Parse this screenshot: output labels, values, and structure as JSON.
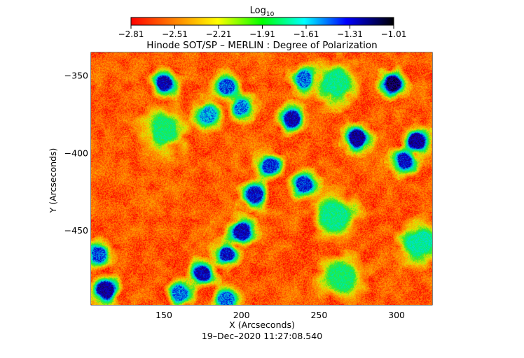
{
  "chart_data": {
    "type": "heatmap",
    "title": "Hinode SOT/SP – MERLIN : Degree of Polarization",
    "xlabel": "X (Arcseconds)",
    "ylabel": "Y (Arcseconds)",
    "timestamp": "19–Dec–2020 11:27:08.540",
    "xlim": [
      103,
      323
    ],
    "ylim": [
      -498,
      -335
    ],
    "x_ticks": [
      150,
      200,
      250,
      300
    ],
    "y_ticks": [
      -350,
      -400,
      -450
    ],
    "colorbar": {
      "title_base": "Log",
      "title_sub": "10",
      "range": [
        -2.81,
        -1.01
      ],
      "ticks": [
        "−2.81",
        "−2.51",
        "−2.21",
        "−1.91",
        "−1.61",
        "−1.31",
        "−1.01"
      ],
      "colors": [
        "#ff0000",
        "#ff8000",
        "#ffff00",
        "#00ff00",
        "#00ffff",
        "#0000ff",
        "#000000"
      ]
    },
    "background_level": -2.6,
    "features": [
      {
        "x": 150,
        "y": -355,
        "level": -1.3
      },
      {
        "x": 190,
        "y": -357,
        "level": -1.45
      },
      {
        "x": 200,
        "y": -370,
        "level": -1.5
      },
      {
        "x": 178,
        "y": -375,
        "level": -1.55
      },
      {
        "x": 240,
        "y": -352,
        "level": -1.5
      },
      {
        "x": 232,
        "y": -378,
        "level": -1.3
      },
      {
        "x": 275,
        "y": -390,
        "level": -1.25
      },
      {
        "x": 298,
        "y": -355,
        "level": -1.15
      },
      {
        "x": 312,
        "y": -392,
        "level": -1.25
      },
      {
        "x": 305,
        "y": -405,
        "level": -1.35
      },
      {
        "x": 218,
        "y": -408,
        "level": -1.4
      },
      {
        "x": 240,
        "y": -420,
        "level": -1.4
      },
      {
        "x": 208,
        "y": -427,
        "level": -1.35
      },
      {
        "x": 190,
        "y": -465,
        "level": -1.35
      },
      {
        "x": 175,
        "y": -478,
        "level": -1.3
      },
      {
        "x": 200,
        "y": -450,
        "level": -1.3
      },
      {
        "x": 112,
        "y": -488,
        "level": -1.25
      },
      {
        "x": 108,
        "y": -465,
        "level": -1.45
      },
      {
        "x": 160,
        "y": -490,
        "level": -1.5
      },
      {
        "x": 190,
        "y": -495,
        "level": -1.5
      },
      {
        "x": 260,
        "y": -440,
        "level": -1.8
      },
      {
        "x": 150,
        "y": -385,
        "level": -1.85
      },
      {
        "x": 315,
        "y": -458,
        "level": -1.75
      },
      {
        "x": 265,
        "y": -480,
        "level": -1.85
      },
      {
        "x": 260,
        "y": -355,
        "level": -1.8
      }
    ]
  }
}
